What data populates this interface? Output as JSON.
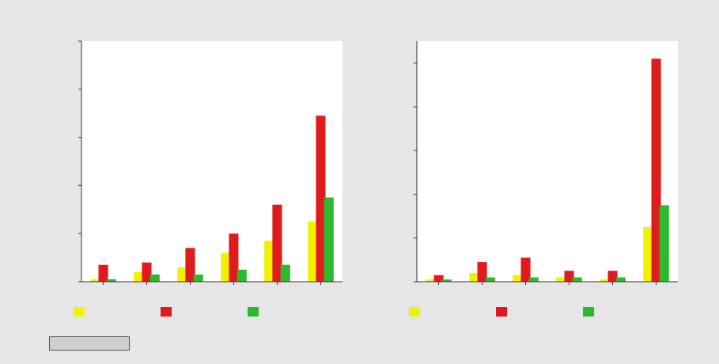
{
  "colors": {
    "series": [
      "#f2f200",
      "#e01b1b",
      "#2eb82e"
    ]
  },
  "footer": {
    "source_text": ""
  },
  "chart_data": [
    {
      "type": "bar",
      "title": "",
      "xlabel": "",
      "ylabel": "",
      "categories": [
        "",
        "",
        "",
        "",
        "",
        ""
      ],
      "ylim": [
        0,
        10
      ],
      "yticks": [
        0,
        2,
        4,
        6,
        8,
        10
      ],
      "ytick_labels": [
        "",
        "",
        "",
        "",
        "",
        ""
      ],
      "grid": false,
      "legend": "bottom",
      "series": [
        {
          "name": "",
          "values": [
            0.1,
            0.4,
            0.6,
            1.2,
            1.7,
            2.5
          ],
          "labels": [
            "",
            "",
            "",
            "",
            "",
            ""
          ]
        },
        {
          "name": "",
          "values": [
            0.7,
            0.8,
            1.4,
            2.0,
            3.2,
            6.9
          ],
          "labels": [
            "",
            "",
            "",
            "",
            "",
            ""
          ]
        },
        {
          "name": "",
          "values": [
            0.1,
            0.3,
            0.3,
            0.5,
            0.7,
            3.5
          ],
          "labels": [
            "",
            "",
            "",
            "",
            "",
            ""
          ]
        }
      ]
    },
    {
      "type": "bar",
      "title": "",
      "xlabel": "",
      "ylabel": "",
      "categories": [
        "",
        "",
        "",
        "",
        "",
        ""
      ],
      "ylim": [
        0,
        550
      ],
      "yticks": [
        0,
        100,
        200,
        300,
        400,
        500
      ],
      "ytick_labels": [
        "",
        "",
        "",
        "",
        "",
        ""
      ],
      "grid": false,
      "legend": "bottom",
      "series": [
        {
          "name": "",
          "values": [
            5,
            20,
            15,
            10,
            5,
            125
          ],
          "labels": [
            "",
            "",
            "",
            "",
            "",
            ""
          ]
        },
        {
          "name": "",
          "values": [
            15,
            45,
            55,
            25,
            25,
            510
          ],
          "labels": [
            "",
            "",
            "",
            "",
            "",
            ""
          ]
        },
        {
          "name": "",
          "values": [
            5,
            10,
            10,
            10,
            10,
            175
          ],
          "labels": [
            "",
            "",
            "",
            "",
            "",
            ""
          ]
        }
      ]
    }
  ]
}
